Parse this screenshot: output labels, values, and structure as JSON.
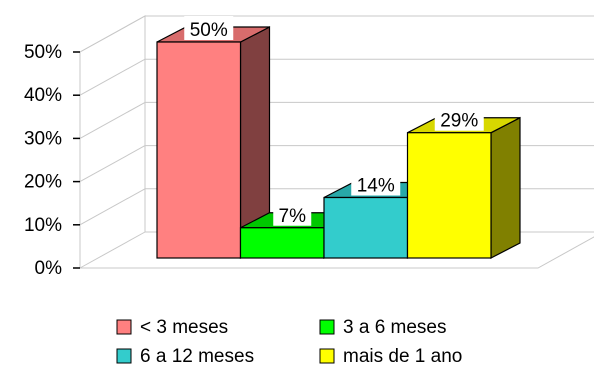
{
  "chart_data": {
    "type": "bar",
    "three_d": true,
    "categories": [
      "< 3 meses",
      "3 a 6 meses",
      "6 a 12 meses",
      "mais de 1 ano"
    ],
    "values": [
      50,
      7,
      14,
      29
    ],
    "data_labels": [
      "50%",
      "7%",
      "14%",
      "29%"
    ],
    "colors": [
      "#ff8080",
      "#00ff00",
      "#33cccc",
      "#ffff00"
    ],
    "colors_side": [
      "#804040",
      "#008000",
      "#1a6666",
      "#808000"
    ],
    "colors_top": [
      "#d86c6c",
      "#00c800",
      "#28a8a8",
      "#d8d800"
    ],
    "y_ticks": [
      0,
      10,
      20,
      30,
      40,
      50
    ],
    "y_tick_labels": [
      "0%",
      "10%",
      "20%",
      "30%",
      "40%",
      "50%"
    ],
    "ylim": [
      0,
      50
    ],
    "grid": true,
    "legend": {
      "position": "bottom",
      "entries": [
        "< 3 meses",
        "3 a 6 meses",
        "6 a 12 meses",
        "mais de 1 ano"
      ]
    }
  }
}
